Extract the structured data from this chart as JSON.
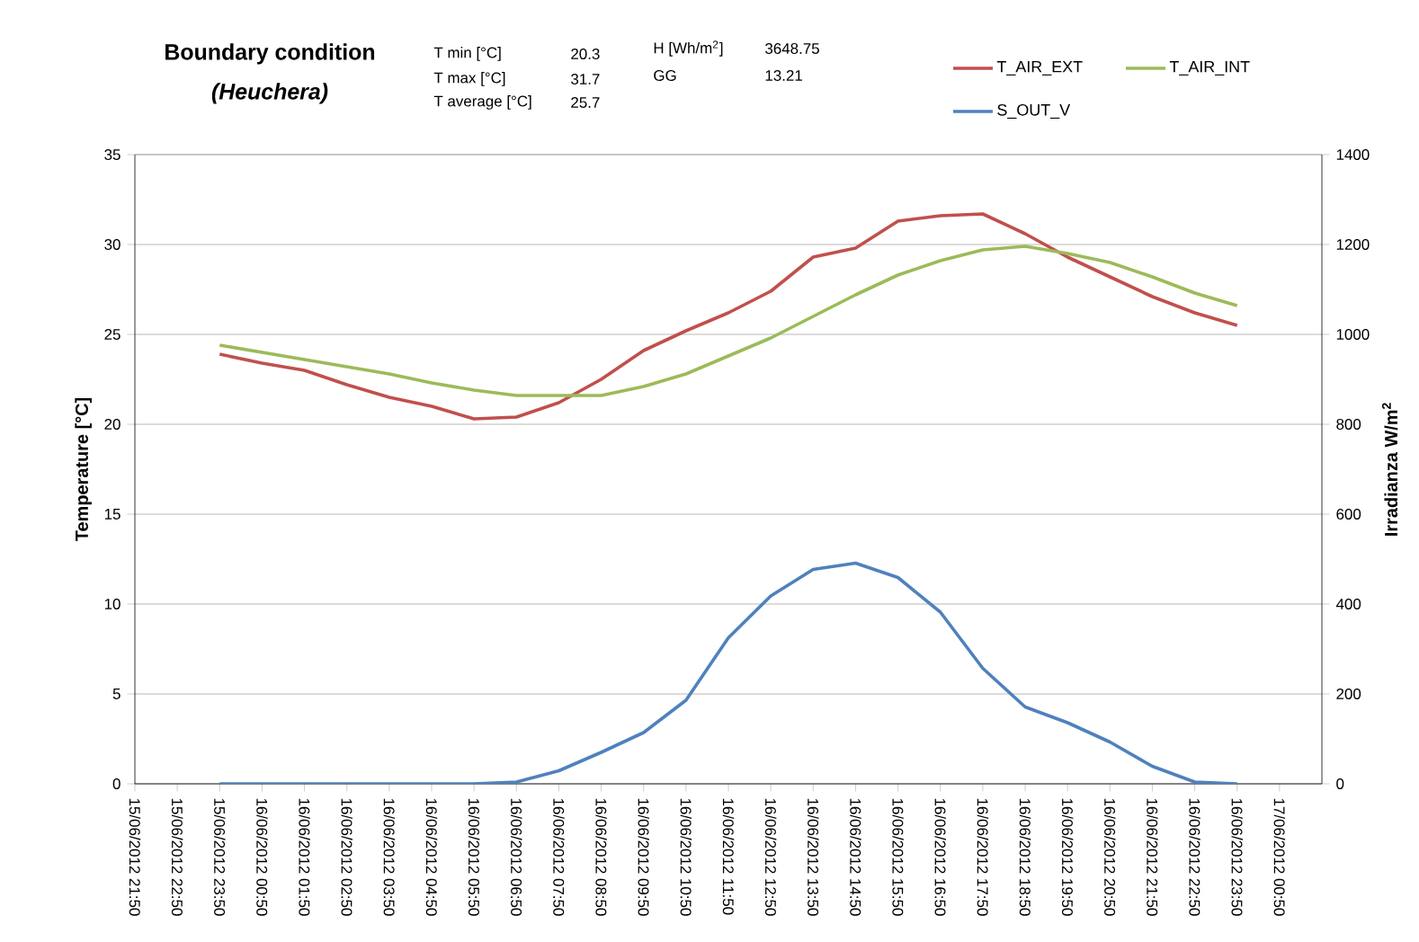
{
  "chart_data": {
    "type": "line",
    "title": "Boundary condition",
    "subtitle": "(Heuchera)",
    "annotations": [
      "T min [°C]",
      "20.3",
      "T max [°C]",
      "31.7",
      "T average [°C]",
      "25.7",
      "H [Wh/m$^{2}$]",
      "3648.75",
      "GG",
      "13.21"
    ],
    "ylabel": "Temperature [°C]",
    "y2label": "Irradianza W/m$^{2}$",
    "categories": [
      "15/06/2012 21:50",
      "15/06/2012 22:50",
      "15/06/2012 23:50",
      "16/06/2012 00:50",
      "16/06/2012 01:50",
      "16/06/2012 02:50",
      "16/06/2012 03:50",
      "16/06/2012 04:50",
      "16/06/2012 05:50",
      "16/06/2012 06:50",
      "16/06/2012 07:50",
      "16/06/2012 08:50",
      "16/06/2012 09:50",
      "16/06/2012 10:50",
      "16/06/2012 11:50",
      "16/06/2012 12:50",
      "16/06/2012 13:50",
      "16/06/2012 14:50",
      "16/06/2012 15:50",
      "16/06/2012 16:50",
      "16/06/2012 17:50",
      "16/06/2012 18:50",
      "16/06/2012 19:50",
      "16/06/2012 20:50",
      "16/06/2012 21:50",
      "16/06/2012 22:50",
      "16/06/2012 23:50",
      "17/06/2012 00:50"
    ],
    "series": [
      {
        "name": "T_AIR_EXT",
        "color": "#c0504d",
        "values": [
          null,
          null,
          23.9,
          23.4,
          23.0,
          22.2,
          21.5,
          21.0,
          20.3,
          20.4,
          21.2,
          22.5,
          24.1,
          25.2,
          26.2,
          27.4,
          29.3,
          29.8,
          31.3,
          31.6,
          31.7,
          30.6,
          29.3,
          28.2,
          27.1,
          26.2,
          25.5,
          null
        ]
      },
      {
        "name": "T_AIR_INT",
        "color": "#9bbb59",
        "values": [
          null,
          null,
          24.4,
          24.0,
          23.6,
          23.2,
          22.8,
          22.3,
          21.9,
          21.6,
          21.6,
          21.6,
          22.1,
          22.8,
          23.8,
          24.8,
          26.0,
          27.2,
          28.3,
          29.1,
          29.7,
          29.9,
          29.5,
          29.0,
          28.2,
          27.3,
          26.6,
          null
        ]
      },
      {
        "name": "S_OUT_V",
        "color": "#4f81bd",
        "axis": "y2",
        "values": [
          null,
          null,
          0,
          0,
          0,
          0,
          0,
          0,
          0,
          4,
          29,
          70,
          114,
          186,
          325,
          418,
          477,
          491,
          459,
          382,
          257,
          171,
          136,
          93,
          39,
          4,
          0,
          null
        ]
      }
    ],
    "ylim": [
      0,
      35
    ],
    "yticks": [
      0,
      5,
      10,
      15,
      20,
      25,
      30,
      35
    ],
    "y2lim": [
      0,
      1400
    ],
    "y2ticks": [
      0,
      200,
      400,
      600,
      800,
      1000,
      1200,
      1400
    ],
    "grid": "y",
    "legend": "top right",
    "marker": "none",
    "line_style": "solid"
  }
}
